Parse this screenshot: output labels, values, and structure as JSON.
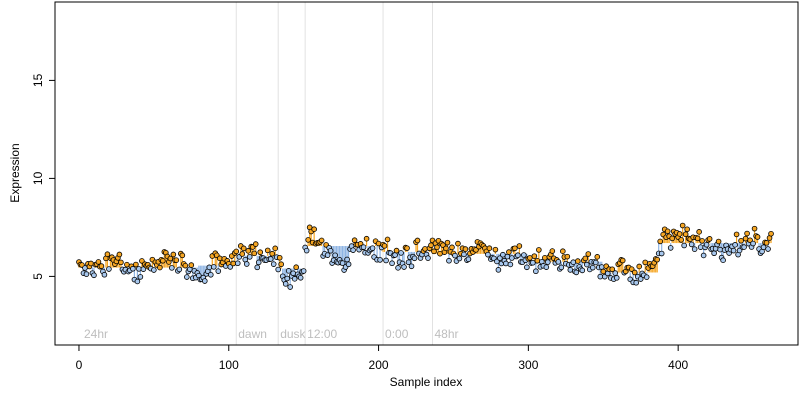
{
  "chart_data": {
    "type": "scatter",
    "xlabel": "Sample index",
    "ylabel": "Expression",
    "xlim": [
      -16,
      480
    ],
    "ylim": [
      1.5,
      19
    ],
    "xticks": [
      0,
      100,
      200,
      300,
      400
    ],
    "yticks": [
      5,
      10,
      15
    ],
    "grid": false,
    "marker_colors": {
      "above": "#F6A623",
      "below": "#A8C8EE"
    },
    "stem_colors": {
      "above": "#F6A623",
      "below": "#8EB4E3"
    },
    "vertical_markers": [
      {
        "x": 105,
        "label": "dawn"
      },
      {
        "x": 133,
        "label": "dusk"
      },
      {
        "x": 151,
        "label": "12:00"
      },
      {
        "x": 203,
        "label": "0:00"
      },
      {
        "x": 236,
        "label": "48hr"
      }
    ],
    "corner_label": "24hr",
    "segments": [
      {
        "x0": 0,
        "x1": 79,
        "mean": 5.45
      },
      {
        "x0": 80,
        "x1": 104,
        "mean": 5.55
      },
      {
        "x0": 105,
        "x1": 132,
        "mean": 6.05
      },
      {
        "x0": 133,
        "x1": 150,
        "mean": 5.4
      },
      {
        "x0": 151,
        "x1": 202,
        "mean": 6.55
      },
      {
        "x0": 203,
        "x1": 235,
        "mean": 6.25
      },
      {
        "x0": 236,
        "x1": 299,
        "mean": 6.15
      },
      {
        "x0": 300,
        "x1": 349,
        "mean": 5.75
      },
      {
        "x0": 350,
        "x1": 386,
        "mean": 5.2
      },
      {
        "x0": 387,
        "x1": 462,
        "mean": 6.7
      }
    ],
    "anchors": [
      [
        0,
        5.5
      ],
      [
        10,
        5.4
      ],
      [
        20,
        5.7
      ],
      [
        30,
        5.5
      ],
      [
        40,
        5.2
      ],
      [
        50,
        5.7
      ],
      [
        60,
        5.9
      ],
      [
        70,
        5.5
      ],
      [
        80,
        4.9
      ],
      [
        90,
        5.6
      ],
      [
        100,
        5.7
      ],
      [
        110,
        6.2
      ],
      [
        120,
        6.1
      ],
      [
        130,
        5.9
      ],
      [
        135,
        5.5
      ],
      [
        140,
        5.0
      ],
      [
        150,
        5.3
      ],
      [
        153,
        7.3
      ],
      [
        158,
        6.8
      ],
      [
        165,
        6.5
      ],
      [
        170,
        5.9
      ],
      [
        178,
        5.6
      ],
      [
        185,
        6.6
      ],
      [
        195,
        6.5
      ],
      [
        205,
        6.3
      ],
      [
        212,
        5.8
      ],
      [
        220,
        6.0
      ],
      [
        230,
        6.4
      ],
      [
        240,
        6.6
      ],
      [
        250,
        6.2
      ],
      [
        260,
        6.1
      ],
      [
        270,
        6.4
      ],
      [
        280,
        6.0
      ],
      [
        290,
        6.1
      ],
      [
        300,
        5.8
      ],
      [
        310,
        5.7
      ],
      [
        320,
        5.9
      ],
      [
        330,
        5.6
      ],
      [
        340,
        5.8
      ],
      [
        350,
        5.2
      ],
      [
        358,
        5.0
      ],
      [
        365,
        5.7
      ],
      [
        372,
        5.0
      ],
      [
        380,
        5.2
      ],
      [
        386,
        5.8
      ],
      [
        390,
        6.8
      ],
      [
        398,
        7.0
      ],
      [
        405,
        7.1
      ],
      [
        412,
        6.7
      ],
      [
        420,
        6.6
      ],
      [
        430,
        6.3
      ],
      [
        440,
        6.6
      ],
      [
        450,
        7.1
      ],
      [
        457,
        6.5
      ],
      [
        462,
        6.9
      ]
    ]
  }
}
